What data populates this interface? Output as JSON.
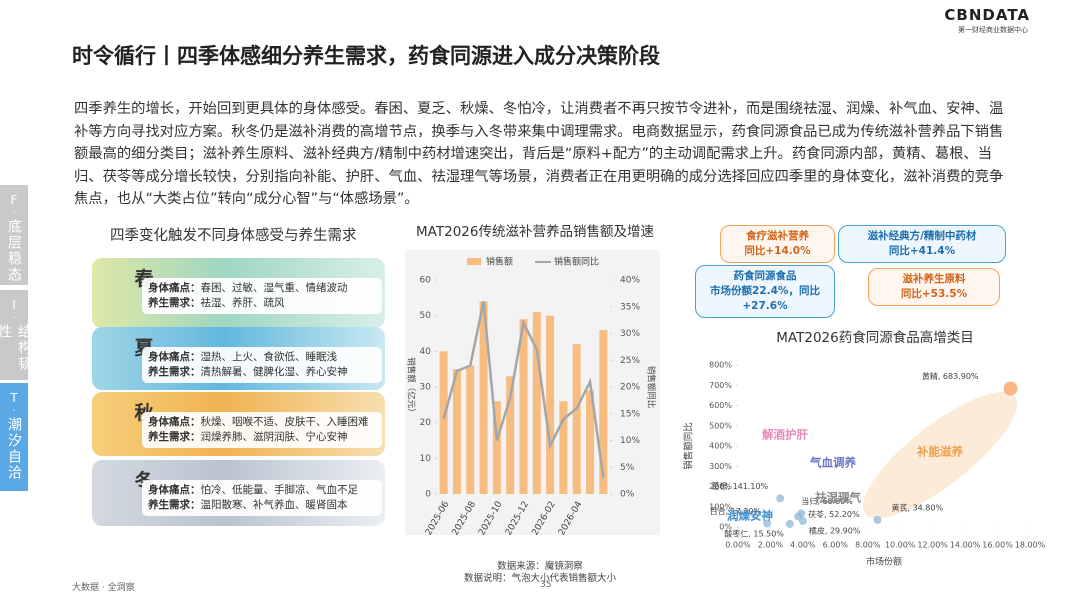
{
  "logo": {
    "brand": "CBNDATA",
    "subtitle": "第一财经商业数据中心"
  },
  "title": "时令循行丨四季体感细分养生需求，药食同源进入成分决策阶段",
  "intro": "四季养生的增长，开始回到更具体的身体感受。春困、夏乏、秋燥、冬怕冷，让消费者不再只按节令进补，而是围绕祛湿、润燥、补气血、安神、温补等方向寻找对应方案。秋冬仍是滋补消费的高增节点，换季与入冬带来集中调理需求。电商数据显示，药食同源食品已成为传统滋补营养品下销售额最高的细分类目；滋补养生原料、滋补经典方/精制中药材增速突出，背后是“原料+配方”的主动调配需求上升。药食同源内部，黄精、葛根、当归、茯苓等成分增长较快，分别指向补能、护肝、气血、祛湿理气等场景，消费者正在用更明确的成分选择回应四季里的身体变化，滋补消费的竞争焦点，也从“大类占位”转向“成分心智”与“体感场景”。",
  "sidebar": [
    {
      "letter": "F",
      "label": "底层稳态"
    },
    {
      "letter": "I",
      "label": "结构韧性"
    },
    {
      "letter": "T",
      "label": "潮汐自洽"
    }
  ],
  "seasons": {
    "title": "四季变化触发不同身体感受与养生需求",
    "items": [
      {
        "name": "春",
        "pain_label": "身体痛点：",
        "pain": "春困、过敏、湿气重、情绪波动",
        "need_label": "养生需求：",
        "need": "祛湿、养肝、疏风"
      },
      {
        "name": "夏",
        "pain_label": "身体痛点：",
        "pain": "湿热、上火、食欲低、睡眠浅",
        "need_label": "养生需求：",
        "need": "清热解暑、健脾化湿、养心安神"
      },
      {
        "name": "秋",
        "pain_label": "身体痛点：",
        "pain": "秋燥、咽喉不适、皮肤干、入睡困难",
        "need_label": "养生需求：",
        "need": "润燥养肺、滋阴润肤、宁心安神"
      },
      {
        "name": "冬",
        "pain_label": "身体痛点：",
        "pain": "怕冷、低能量、手脚凉、气血不足",
        "need_label": "养生需求：",
        "need": "温阳散寒、补气养血、暖肾固本"
      }
    ]
  },
  "chart_data": [
    {
      "type": "bar",
      "title": "MAT2026传统滋补营养品销售额及增速",
      "categories": [
        "2025-06",
        null,
        "2025-08",
        null,
        "2025-10",
        null,
        "2025-12",
        null,
        "2026-02",
        null,
        "2026-04",
        null,
        null
      ],
      "series": [
        {
          "name": "销售额",
          "type": "bar",
          "color": "#f7bc80",
          "values": [
            40,
            35,
            36,
            54,
            26,
            33,
            49,
            51,
            50,
            26,
            42,
            29,
            46
          ]
        },
        {
          "name": "销售额同比",
          "type": "line",
          "axis": "y2",
          "color": "#a6a6a6",
          "values": [
            14,
            23,
            24,
            36,
            10,
            18,
            32,
            27,
            9,
            14,
            16,
            21,
            3
          ]
        }
      ],
      "ylabel": "销售额（亿元）",
      "y2label": "销售额同比",
      "ylim": [
        0,
        60
      ],
      "yticks": [
        0,
        10,
        20,
        30,
        40,
        50,
        60
      ],
      "y2lim": [
        0,
        40
      ],
      "y2ticks": [
        {
          "value": 0,
          "label": "0%"
        },
        {
          "value": 5,
          "label": "5%"
        },
        {
          "value": 10,
          "label": "10%"
        },
        {
          "value": 15,
          "label": "15%"
        },
        {
          "value": 20,
          "label": "20%"
        },
        {
          "value": 25,
          "label": "25%"
        },
        {
          "value": 30,
          "label": "30%"
        },
        {
          "value": 35,
          "label": "35%"
        },
        {
          "value": 40,
          "label": "40%"
        }
      ]
    },
    {
      "type": "scatter",
      "title": "MAT2026药食同源食品高增类目",
      "color": "#f4a259",
      "x": [
        16.8,
        8.6,
        2.6,
        3.9,
        3.7,
        1.8,
        3.2,
        4.0
      ],
      "values": [
        683.9,
        34.8,
        141.1,
        66.8,
        52.2,
        17.2,
        15.5,
        29.9
      ],
      "value_labels": [
        "黄精, 683.90%",
        "黄芪, 34.80%",
        "葛根, 141.10%",
        "当归, 66.80%",
        "茯苓, 52.20%",
        "百合, 17.20%",
        "酸枣仁, 15.50%",
        "橘皮, 29.90%"
      ],
      "groups": [
        "解酒护肝",
        "气血调养",
        "祛湿理气",
        "润燥安神",
        "补能滋养"
      ],
      "xlabel": "市场份额",
      "ylabel": "销售额同比",
      "xlim": [
        0,
        18
      ],
      "xticks": [
        {
          "value": 0,
          "label": "0.00%"
        },
        {
          "value": 2,
          "label": "2.00%"
        },
        {
          "value": 4,
          "label": "4.00%"
        },
        {
          "value": 6,
          "label": "6.00%"
        },
        {
          "value": 8,
          "label": "8.00%"
        },
        {
          "value": 10,
          "label": "10.00%"
        },
        {
          "value": 12,
          "label": "12.00%"
        },
        {
          "value": 14,
          "label": "14.00%"
        },
        {
          "value": 16,
          "label": "16.00%"
        },
        {
          "value": 18,
          "label": "18.00%"
        }
      ],
      "ylim": [
        0,
        800
      ],
      "yticks": [
        {
          "value": 0,
          "label": "0%"
        },
        {
          "value": 100,
          "label": "100%"
        },
        {
          "value": 200,
          "label": "200%"
        },
        {
          "value": 300,
          "label": "300%"
        },
        {
          "value": 400,
          "label": "400%"
        },
        {
          "value": 500,
          "label": "500%"
        },
        {
          "value": 600,
          "label": "600%"
        },
        {
          "value": 700,
          "label": "700%"
        },
        {
          "value": 800,
          "label": "800%"
        }
      ]
    }
  ],
  "tags": [
    {
      "name": "食疗滋补营养",
      "stat": "同比+14.0%"
    },
    {
      "name": "滋补经典方/精制中药材",
      "stat": "同比+41.4%"
    },
    {
      "name": "药食同源食品",
      "stat": "市场份额22.4%，同比+27.6%"
    },
    {
      "name": "滋补养生原料",
      "stat": "同比+53.5%"
    }
  ],
  "notes": [
    "数据来源：魔镜洞察",
    "数据说明：气泡大小代表销售额大小"
  ],
  "footer": {
    "left": "大数据 · 全洞察",
    "page": "35"
  }
}
